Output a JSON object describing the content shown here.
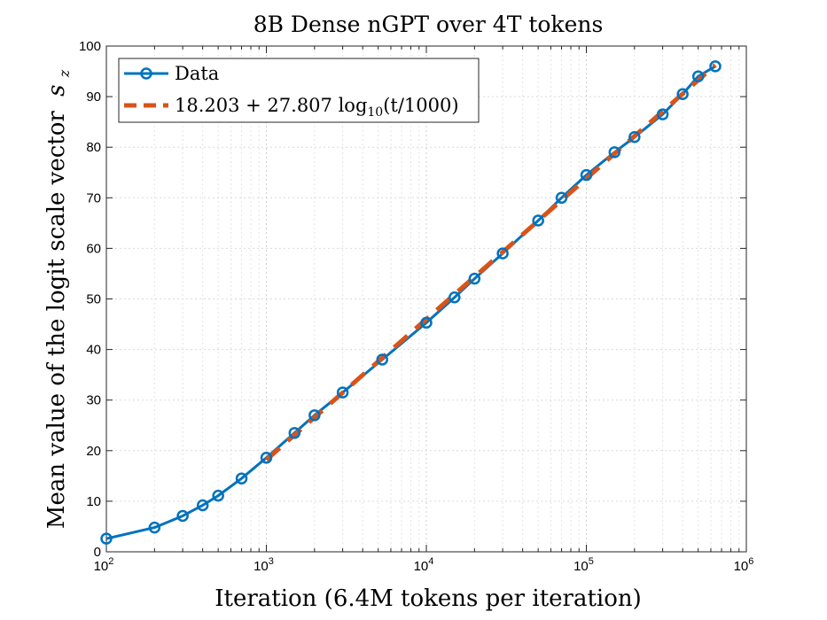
{
  "chart_data": {
    "type": "line",
    "title": "8B Dense nGPT over 4T tokens",
    "xlabel": "Iteration (6.4M tokens per iteration)",
    "ylabel": "Mean value of the logit scale vector",
    "ylabel_symbol": "s",
    "ylabel_symbol_sub": "z",
    "xscale": "log",
    "xlim": [
      100,
      1000000
    ],
    "ylim": [
      0,
      100
    ],
    "x_ticks": [
      {
        "base": "10",
        "exp": "2",
        "value": 100
      },
      {
        "base": "10",
        "exp": "3",
        "value": 1000
      },
      {
        "base": "10",
        "exp": "4",
        "value": 10000
      },
      {
        "base": "10",
        "exp": "5",
        "value": 100000
      },
      {
        "base": "10",
        "exp": "6",
        "value": 1000000
      }
    ],
    "y_ticks": [
      "0",
      "10",
      "20",
      "30",
      "40",
      "50",
      "60",
      "70",
      "80",
      "90",
      "100"
    ],
    "grid": true,
    "legend_position": "top-left",
    "series": [
      {
        "name": "Data",
        "color": "#0072BD",
        "style": "solid-with-circle-markers",
        "x": [
          100,
          200,
          300,
          400,
          500,
          700,
          1000,
          1500,
          2000,
          3000,
          5300,
          10000,
          15000,
          20000,
          30000,
          50000,
          70000,
          100000,
          150000,
          200000,
          300000,
          400000,
          500000,
          640000
        ],
        "y": [
          2.6,
          4.8,
          7.1,
          9.2,
          11.1,
          14.5,
          18.6,
          23.5,
          27.0,
          31.5,
          38.0,
          45.3,
          50.3,
          54.0,
          59.0,
          65.5,
          70.0,
          74.5,
          79.0,
          82.0,
          86.5,
          90.5,
          94.0,
          96.0
        ]
      },
      {
        "name": "18.203 + 27.807 log10(t/1000)",
        "label_parts": {
          "a": "18.203 + 27.807 log",
          "sub": "10",
          "b": "(t/1000)"
        },
        "color": "#D95319",
        "style": "dashed",
        "intercept": 18.203,
        "slope": 27.807,
        "x_range": [
          1000,
          640000
        ]
      }
    ]
  }
}
